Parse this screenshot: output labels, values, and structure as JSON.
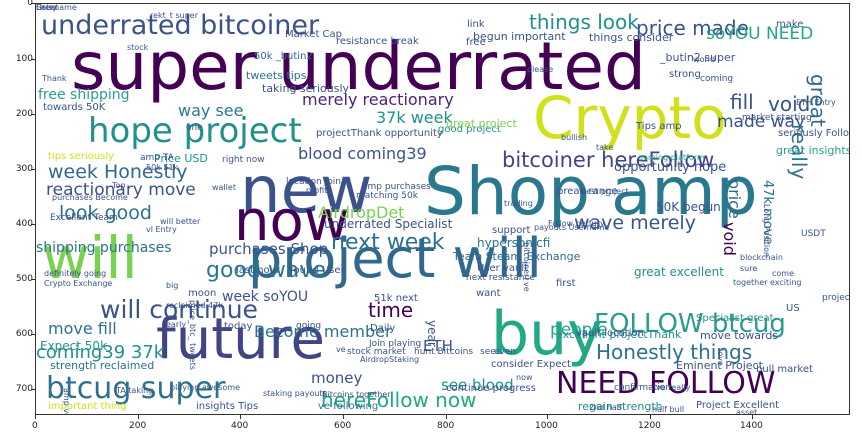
{
  "figure": {
    "x_ticks": [
      "0",
      "200",
      "400",
      "600",
      "800",
      "1000",
      "1200",
      "1400"
    ],
    "y_ticks": [
      "0",
      "100",
      "200",
      "300",
      "400",
      "500",
      "600",
      "700"
    ]
  },
  "cloud": {
    "colors": {
      "dark_purple": "#440154",
      "indigo": "#3b528b",
      "teal": "#21918c",
      "green": "#5ec962",
      "yellow": "#d8e219",
      "slate": "#31688e"
    },
    "words": [
      {
        "t": "super underrated",
        "c": "#440154"
      },
      {
        "t": "Crypto",
        "c": "#d0e11c"
      },
      {
        "t": "Shop amp",
        "c": "#2a788e"
      },
      {
        "t": "project will",
        "c": "#31688e"
      },
      {
        "t": "future",
        "c": "#414487"
      },
      {
        "t": "buy",
        "c": "#22a884"
      },
      {
        "t": "new",
        "c": "#3b528b"
      },
      {
        "t": "now",
        "c": "#440154"
      },
      {
        "t": "will",
        "c": "#7ad151"
      },
      {
        "t": "hope project",
        "c": "#21918c"
      },
      {
        "t": "underrated bitcoiner",
        "c": "#3b528b"
      },
      {
        "t": "NEED FOLLOW",
        "c": "#440154"
      },
      {
        "t": "FOLLOW btcug",
        "c": "#2a9d8f"
      },
      {
        "t": "btcug super",
        "c": "#2c728e"
      },
      {
        "t": "things look",
        "c": "#21918c"
      },
      {
        "t": "price made",
        "c": "#3b528b"
      },
      {
        "t": "soYOU NEED",
        "c": "#22a884"
      },
      {
        "t": "week Honestly",
        "c": "#31688e"
      },
      {
        "t": "look good",
        "c": "#2c728e"
      },
      {
        "t": "bitcoiner hereFollow",
        "c": "#414487"
      },
      {
        "t": "wave merely",
        "c": "#3b528b"
      },
      {
        "t": "next week",
        "c": "#2c728e"
      },
      {
        "t": "good wave",
        "c": "#2a788e"
      },
      {
        "t": "will continue",
        "c": "#3b528b"
      },
      {
        "t": "hereFollow now",
        "c": "#22a884"
      },
      {
        "t": "time",
        "c": "#440154"
      },
      {
        "t": "Honestly things",
        "c": "#2c728e"
      },
      {
        "t": "reactionary move",
        "c": "#3b528b"
      },
      {
        "t": "merely reactionary",
        "c": "#482576"
      },
      {
        "t": "37k week",
        "c": "#21918c"
      },
      {
        "t": "blood coming39",
        "c": "#3b528b"
      },
      {
        "t": "way see",
        "c": "#2a788e"
      },
      {
        "t": "fill",
        "c": "#3b528b"
      },
      {
        "t": "void",
        "c": "#3b528b"
      },
      {
        "t": "made way",
        "c": "#3b528b"
      },
      {
        "t": "great",
        "c": "#31688e"
      },
      {
        "t": "really",
        "c": "#2c728e"
      },
      {
        "t": "price",
        "c": "#31688e"
      },
      {
        "t": "void",
        "c": "#440154"
      },
      {
        "t": "move fill",
        "c": "#2c728e"
      },
      {
        "t": "coming39 37k",
        "c": "#21918c"
      },
      {
        "t": "people",
        "c": "#22a884"
      },
      {
        "t": "money",
        "c": "#3b528b"
      },
      {
        "t": "see blood",
        "c": "#21918c"
      },
      {
        "t": "free shipping",
        "c": "#2a9d8f"
      },
      {
        "t": "AirdropDet",
        "c": "#7ad151"
      },
      {
        "t": "shipping purchases",
        "c": "#2c728e"
      },
      {
        "t": "purchases Shop",
        "c": "#3b528b"
      },
      {
        "t": "week soYOU",
        "c": "#3b528b"
      },
      {
        "t": "Become member",
        "c": "#2c728e"
      },
      {
        "t": "opportunity hope",
        "c": "#3b528b"
      },
      {
        "t": "underrated Specialist",
        "c": "#3b528b"
      },
      {
        "t": "hypersonicfi",
        "c": "#2c728e"
      },
      {
        "t": "great excellent",
        "c": "#21918c"
      },
      {
        "t": "ETH",
        "c": "#3b528b"
      },
      {
        "t": "strength reclaimed",
        "c": "#2c728e"
      },
      {
        "t": "Expect 50k",
        "c": "#21918c"
      },
      {
        "t": "50K begun",
        "c": "#3b528b"
      },
      {
        "t": "47k move",
        "c": "#2c728e"
      },
      {
        "t": "Price USD",
        "c": "#21918c"
      },
      {
        "t": "tweets tips",
        "c": "#2c728e"
      },
      {
        "t": "taking seriously",
        "c": "#3b528b"
      },
      {
        "t": "seriously Follow",
        "c": "#3b528b"
      },
      {
        "t": "great insights",
        "c": "#2a9d8f"
      },
      {
        "t": "begun important",
        "c": "#3b528b"
      },
      {
        "t": "things consider",
        "c": "#3b528b"
      },
      {
        "t": "strong",
        "c": "#3b528b"
      },
      {
        "t": "_butin2 super",
        "c": "#3b528b"
      },
      {
        "t": "50k _butin2",
        "c": "#31688e"
      },
      {
        "t": "Market Cap",
        "c": "#3b528b"
      },
      {
        "t": "resistance break",
        "c": "#3b528b"
      },
      {
        "t": "good project",
        "c": "#21918c"
      },
      {
        "t": "great project",
        "c": "#7ad151"
      },
      {
        "t": "Excellent Team",
        "c": "#3b528b"
      },
      {
        "t": "break range",
        "c": "#3b528b"
      },
      {
        "t": "Team Steam_Exchange",
        "c": "#31688e"
      },
      {
        "t": "Eminent Project",
        "c": "#3b528b"
      },
      {
        "t": "continue progress",
        "c": "#3b528b"
      },
      {
        "t": "regain strength",
        "c": "#21918c"
      },
      {
        "t": "Project Excellent",
        "c": "#3b528b"
      },
      {
        "t": "bull market",
        "c": "#3b528b"
      },
      {
        "t": "important thing",
        "c": "#d0e11c"
      },
      {
        "t": "insights Tips",
        "c": "#3b528b"
      },
      {
        "t": "ve following",
        "c": "#2c728e"
      },
      {
        "t": "excellent projectThank",
        "c": "#21918c"
      },
      {
        "t": "move towards",
        "c": "#3b528b"
      },
      {
        "t": "vault location",
        "c": "#3b528b"
      },
      {
        "t": "User vault",
        "c": "#3b528b"
      },
      {
        "t": "Specialist great",
        "c": "#21918c"
      },
      {
        "t": "consider Expect",
        "c": "#3b528b"
      },
      {
        "t": "towards 50K",
        "c": "#3b528b"
      },
      {
        "t": "tips seriously",
        "c": "#d0e11c"
      },
      {
        "t": "right now",
        "c": "#3b528b"
      },
      {
        "t": "last hour",
        "c": "#3b528b"
      },
      {
        "t": "found User",
        "c": "#3b528b"
      },
      {
        "t": "today",
        "c": "#3b528b"
      },
      {
        "t": "support",
        "c": "#3b528b"
      },
      {
        "t": "want",
        "c": "#3b528b"
      },
      {
        "t": "first",
        "c": "#3b528b"
      },
      {
        "t": "Daily",
        "c": "#3b528b"
      },
      {
        "t": "year",
        "c": "#3b528b"
      },
      {
        "t": "moon",
        "c": "#3b528b"
      },
      {
        "t": "link",
        "c": "#3b528b"
      },
      {
        "t": "free",
        "c": "#3b528b"
      },
      {
        "t": "make",
        "c": "#3b528b"
      },
      {
        "t": "Tips amp",
        "c": "#3b528b"
      },
      {
        "t": "amp TA",
        "c": "#3b528b"
      },
      {
        "t": "one",
        "c": "#3b528b"
      },
      {
        "t": "projectThank opportunity",
        "c": "#3b528b"
      },
      {
        "t": "location Join",
        "c": "#3b528b"
      },
      {
        "t": "matching 50k",
        "c": "#3b528b"
      },
      {
        "t": "amp purchases",
        "c": "#3b528b"
      },
      {
        "t": "51k next",
        "c": "#3b528b"
      },
      {
        "t": "next resistance",
        "c": "#3b528b"
      },
      {
        "t": "Join playing",
        "c": "#3b528b"
      },
      {
        "t": "stock market",
        "c": "#3b528b"
      },
      {
        "t": "hunt Bitcoins",
        "c": "#3b528b"
      },
      {
        "t": "see",
        "c": "#3b528b"
      },
      {
        "t": "even",
        "c": "#3b528b"
      },
      {
        "t": "love",
        "c": "#3b528b"
      },
      {
        "t": "ve really",
        "c": "#3b528b"
      },
      {
        "t": "2nd half",
        "c": "#3b528b"
      },
      {
        "t": "half bull",
        "c": "#3b528b"
      },
      {
        "t": "Bitcoins together",
        "c": "#3b528b"
      },
      {
        "t": "staking payouts",
        "c": "#3b528b"
      },
      {
        "t": "TA taking",
        "c": "#3b528b"
      },
      {
        "t": "playing awesome",
        "c": "#3b528b"
      },
      {
        "t": "going",
        "c": "#3b528b"
      },
      {
        "t": "profit",
        "c": "#3b528b"
      },
      {
        "t": "definitely going",
        "c": "#3b528b"
      },
      {
        "t": "Crypto Exchange",
        "c": "#3b528b"
      },
      {
        "t": "Follow betfury",
        "c": "#3b528b"
      },
      {
        "t": "bitcoinerl ve",
        "c": "#3b528b"
      },
      {
        "t": "Long Position",
        "c": "#3b528b"
      },
      {
        "t": "blockchain",
        "c": "#3b528b"
      },
      {
        "t": "best project",
        "c": "#3b528b"
      },
      {
        "t": "together exciting",
        "c": "#3b528b"
      },
      {
        "t": "trading",
        "c": "#3b528b"
      },
      {
        "t": "stock",
        "c": "#3b528b"
      },
      {
        "t": "please",
        "c": "#3b528b"
      },
      {
        "t": "Thank",
        "c": "#3b528b"
      },
      {
        "t": "bullish",
        "c": "#3b528b"
      },
      {
        "t": "coming",
        "c": "#3b528b"
      },
      {
        "t": "market starting",
        "c": "#3b528b"
      },
      {
        "t": "gaming platform",
        "c": "#22a884"
      },
      {
        "t": "payouts Username",
        "c": "#3b528b"
      },
      {
        "t": "project hope",
        "c": "#3b528b"
      },
      {
        "t": "US",
        "c": "#3b528b"
      },
      {
        "t": "USDT",
        "c": "#3b528b"
      },
      {
        "t": "50k 51k",
        "c": "#3b528b"
      },
      {
        "t": "amp ve",
        "c": "#3b528b"
      },
      {
        "t": "asset",
        "c": "#3b528b"
      },
      {
        "t": "ve",
        "c": "#3b528b"
      },
      {
        "t": "world",
        "c": "#3b528b"
      },
      {
        "t": "take",
        "c": "#3b528b"
      },
      {
        "t": "Top",
        "c": "#3b528b"
      },
      {
        "t": "will better",
        "c": "#3b528b"
      },
      {
        "t": "purchases Become",
        "c": "#3b528b"
      },
      {
        "t": "_rekt_t super",
        "c": "#3b528b"
      },
      {
        "t": "reclaimed 47k",
        "c": "#3b528b"
      },
      {
        "t": "price_btc_ tweets",
        "c": "#3b528b"
      },
      {
        "t": "vl Entry",
        "c": "#3b528b"
      },
      {
        "t": "wallet",
        "c": "#3b528b"
      },
      {
        "t": "ETH Entry",
        "c": "#3b528b"
      },
      {
        "t": "AirdropStaking",
        "c": "#3b528b"
      },
      {
        "t": "now",
        "c": "#3b528b"
      },
      {
        "t": "early",
        "c": "#3b528b"
      },
      {
        "t": "sure",
        "c": "#3b528b"
      },
      {
        "t": "come",
        "c": "#3b528b"
      },
      {
        "t": "big",
        "c": "#3b528b"
      },
      {
        "t": "confirmation",
        "c": "#3b528b"
      },
      {
        "t": "Username",
        "c": "#3b528b"
      },
      {
        "t": "Entry",
        "c": "#3b528b"
      },
      {
        "t": "Great",
        "c": "#3b528b"
      }
    ]
  }
}
